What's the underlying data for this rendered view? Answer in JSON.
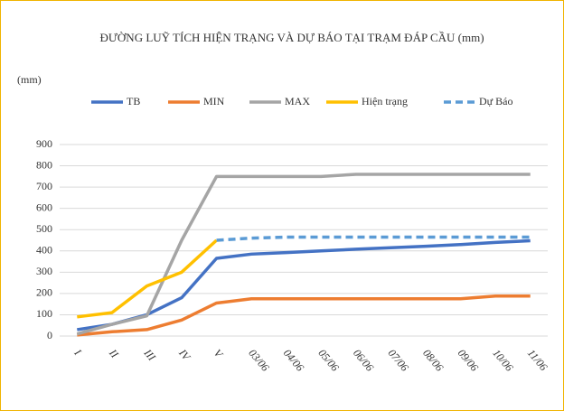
{
  "chart_data": {
    "type": "line",
    "title": "ĐƯỜNG LUỸ TÍCH HIỆN TRẠNG VÀ DỰ BÁO TẠI TRẠM ĐÁP CẦU (mm)",
    "y_label": "(mm)",
    "categories": [
      "I",
      "II",
      "III",
      "IV",
      "V",
      "03/06",
      "04/06",
      "05/06",
      "06/06",
      "07/06",
      "08/06",
      "09/06",
      "10/06",
      "11/06"
    ],
    "series": [
      {
        "name": "TB",
        "color": "#4472c4",
        "dashed": false,
        "values": [
          30,
          55,
          100,
          180,
          365,
          385,
          392,
          400,
          408,
          415,
          422,
          430,
          440,
          448
        ]
      },
      {
        "name": "MIN",
        "color": "#ed7d31",
        "dashed": false,
        "values": [
          5,
          20,
          30,
          75,
          155,
          175,
          175,
          175,
          175,
          175,
          175,
          175,
          188,
          188
        ]
      },
      {
        "name": "MAX",
        "color": "#a5a5a5",
        "dashed": false,
        "values": [
          10,
          55,
          95,
          450,
          750,
          750,
          750,
          750,
          760,
          760,
          760,
          760,
          760,
          760
        ]
      },
      {
        "name": "Hiện trạng",
        "color": "#ffc000",
        "dashed": false,
        "values": [
          90,
          110,
          235,
          300,
          450,
          null,
          null,
          null,
          null,
          null,
          null,
          null,
          null,
          null
        ]
      },
      {
        "name": "Dự Báo",
        "color": "#5b9bd5",
        "dashed": true,
        "values": [
          null,
          null,
          null,
          null,
          450,
          460,
          465,
          465,
          465,
          465,
          465,
          465,
          465,
          465
        ]
      }
    ],
    "ylim": [
      0,
      900
    ],
    "yticks": [
      0,
      100,
      200,
      300,
      400,
      500,
      600,
      700,
      800,
      900
    ],
    "grid": true,
    "legend": "top"
  }
}
